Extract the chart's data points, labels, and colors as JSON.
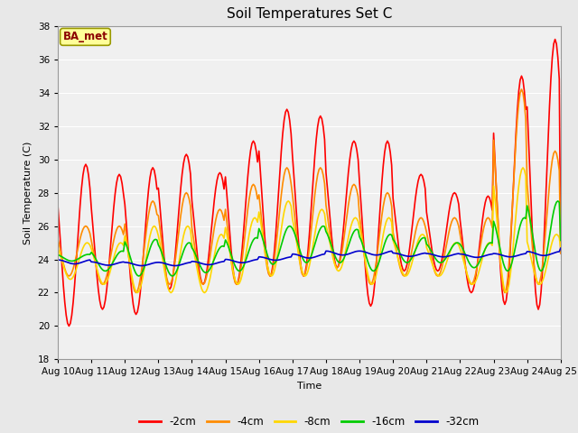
{
  "title": "Soil Temperatures Set C",
  "xlabel": "Time",
  "ylabel": "Soil Temperature (C)",
  "ylim": [
    18,
    38
  ],
  "yticks": [
    18,
    20,
    22,
    24,
    26,
    28,
    30,
    32,
    34,
    36,
    38
  ],
  "xlim": [
    0,
    360
  ],
  "xtick_labels": [
    "Aug 10",
    "Aug 11",
    "Aug 12",
    "Aug 13",
    "Aug 14",
    "Aug 15",
    "Aug 16",
    "Aug 17",
    "Aug 18",
    "Aug 19",
    "Aug 20",
    "Aug 21",
    "Aug 22",
    "Aug 23",
    "Aug 24",
    "Aug 25"
  ],
  "xtick_positions": [
    0,
    24,
    48,
    72,
    96,
    120,
    144,
    168,
    192,
    216,
    240,
    264,
    288,
    312,
    336,
    360
  ],
  "annotation_text": "BA_met",
  "annotation_color": "#8B0000",
  "annotation_bg": "#FFFF99",
  "annotation_edge": "#999900",
  "bg_color": "#E8E8E8",
  "plot_bg": "#F0F0F0",
  "grid_color": "#FFFFFF",
  "series_colors": [
    "#FF0000",
    "#FF8C00",
    "#FFD700",
    "#00CC00",
    "#0000CD"
  ],
  "series_lw": 1.2,
  "legend_labels": [
    "-2cm",
    "-4cm",
    "-8cm",
    "-16cm",
    "-32cm"
  ],
  "m2_peaks": [
    29.7,
    29.1,
    29.5,
    30.3,
    29.2,
    31.1,
    33.0,
    32.6,
    31.1,
    31.1,
    29.1,
    28.0,
    27.8,
    35.0,
    37.2,
    24.5
  ],
  "m2_mins": [
    20.0,
    21.0,
    20.7,
    22.2,
    22.5,
    22.5,
    23.0,
    23.0,
    23.5,
    21.2,
    23.3,
    23.3,
    22.0,
    21.3,
    21.0,
    24.0
  ],
  "m4_peaks": [
    26.0,
    26.0,
    27.5,
    28.0,
    27.0,
    28.5,
    29.5,
    29.5,
    28.5,
    28.0,
    26.5,
    26.5,
    26.5,
    34.2,
    30.5,
    24.5
  ],
  "m4_mins": [
    23.0,
    22.5,
    22.0,
    22.5,
    22.5,
    22.5,
    23.0,
    23.0,
    23.5,
    22.5,
    23.0,
    23.0,
    22.5,
    22.0,
    22.5,
    24.0
  ],
  "m8_peaks": [
    25.0,
    25.0,
    26.0,
    26.0,
    25.5,
    26.5,
    27.5,
    27.0,
    26.5,
    26.5,
    25.5,
    25.0,
    25.0,
    29.5,
    25.5,
    24.8
  ],
  "m8_mins": [
    22.8,
    22.5,
    22.0,
    22.0,
    22.0,
    22.5,
    23.0,
    23.0,
    23.3,
    22.5,
    23.0,
    23.0,
    22.5,
    22.0,
    22.5,
    24.0
  ],
  "m16_peaks": [
    24.3,
    24.5,
    25.2,
    25.0,
    24.8,
    25.3,
    26.0,
    26.0,
    25.8,
    25.5,
    25.3,
    25.0,
    25.0,
    26.5,
    27.5,
    25.2
  ],
  "m16_mins": [
    23.9,
    23.3,
    23.0,
    23.0,
    23.2,
    23.3,
    23.7,
    23.8,
    23.8,
    23.3,
    23.8,
    23.8,
    23.5,
    23.3,
    23.3,
    24.3
  ],
  "m32_base": [
    23.85,
    23.75,
    23.72,
    23.72,
    23.78,
    23.9,
    24.05,
    24.2,
    24.38,
    24.38,
    24.28,
    24.25,
    24.22,
    24.25,
    24.35,
    24.55
  ],
  "m32_amp": [
    0.12,
    0.1,
    0.1,
    0.1,
    0.1,
    0.1,
    0.1,
    0.12,
    0.12,
    0.12,
    0.1,
    0.1,
    0.1,
    0.1,
    0.12,
    0.12
  ],
  "figsize": [
    6.4,
    4.8
  ],
  "dpi": 100
}
